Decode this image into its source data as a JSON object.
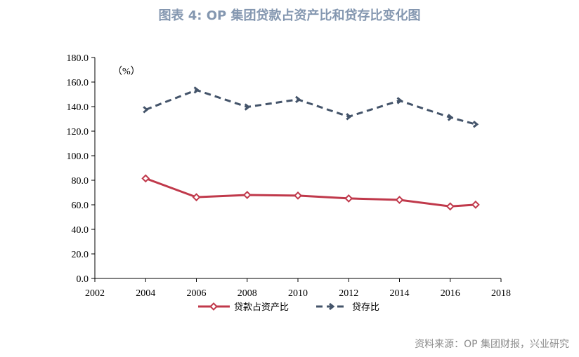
{
  "title": "图表 4: OP 集团贷款占资产比和贷存比变化图",
  "source": "资料来源：OP 集团财报，兴业研究",
  "chart_data": {
    "type": "line",
    "unit_label": "（%）",
    "x": [
      2004,
      2006,
      2008,
      2010,
      2012,
      2014,
      2016,
      2017
    ],
    "xlim": [
      2002,
      2018
    ],
    "x_ticks": [
      "2002",
      "2004",
      "2006",
      "2008",
      "2010",
      "2012",
      "2014",
      "2016",
      "2018"
    ],
    "ylim": [
      0,
      180
    ],
    "y_ticks": [
      "0.0",
      "20.0",
      "40.0",
      "60.0",
      "80.0",
      "100.0",
      "120.0",
      "140.0",
      "160.0",
      "180.0"
    ],
    "grid": false,
    "legend_position": "bottom",
    "series": [
      {
        "name": "贷款占资产比",
        "color": "#c0394b",
        "style": "solid",
        "values": [
          81.5,
          66.2,
          68.0,
          67.5,
          65.2,
          64.0,
          58.7,
          60.1
        ]
      },
      {
        "name": "贷存比",
        "color": "#44546a",
        "style": "dashed",
        "values": [
          137.5,
          153.5,
          139.7,
          145.8,
          131.8,
          144.9,
          131.2,
          125.6
        ]
      }
    ]
  }
}
